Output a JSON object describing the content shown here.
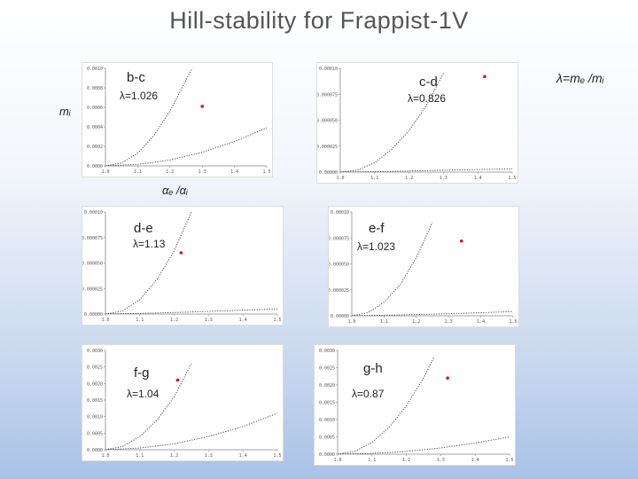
{
  "title": "Hill-stability for Frappist-1V",
  "labels": {
    "lambda_def": "λ=mₑ /mᵢ",
    "ylabel": "mᵢ",
    "xlabel": "αₑ /αᵢ"
  },
  "colors": {
    "point": "#d11a1a",
    "curve": "#333333",
    "axis": "#888888"
  },
  "chart_data": [
    {
      "type": "line",
      "pair": "b-c",
      "lambda_label": "λ=1.026",
      "x_ticks": [
        "1.0",
        "1.1",
        "1.2",
        "1.3",
        "1.4",
        "1.5"
      ],
      "y_ticks": [
        "0.0010",
        "0.0008",
        "0.0006",
        "0.0004",
        "0.0002",
        "0.0000"
      ],
      "xlim": [
        1.0,
        1.5
      ],
      "ylim": [
        0.0,
        0.001
      ],
      "series": [
        {
          "x": [
            1.0,
            1.05,
            1.1,
            1.15,
            1.2,
            1.25,
            1.3
          ],
          "values": [
            0.0,
            3e-05,
            0.00013,
            0.00031,
            0.00056,
            0.00088,
            0.0012
          ]
        },
        {
          "x": [
            1.0,
            1.1,
            1.2,
            1.3,
            1.4,
            1.5
          ],
          "values": [
            0.0,
            1.5e-05,
            6e-05,
            0.00014,
            0.00025,
            0.00039
          ]
        }
      ],
      "point": {
        "x": 1.3,
        "y": 0.00061
      }
    },
    {
      "type": "line",
      "pair": "c-d",
      "lambda_label": "λ=0.826",
      "x_ticks": [
        "1.0",
        "1.1",
        "1.2",
        "1.3",
        "1.4",
        "1.5"
      ],
      "y_ticks": [
        "0.00010",
        "0.000075",
        "0.000050",
        "0.000025",
        "0.00000"
      ],
      "xlim": [
        1.0,
        1.5
      ],
      "ylim": [
        0.0,
        0.0001
      ],
      "series": [
        {
          "x": [
            1.0,
            1.05,
            1.1,
            1.15,
            1.2,
            1.25,
            1.3
          ],
          "values": [
            0.0,
            2e-06,
            9e-06,
            2.2e-05,
            4e-05,
            6.4e-05,
            9.5e-05
          ]
        },
        {
          "x": [
            1.0,
            1.1,
            1.2,
            1.3,
            1.4,
            1.5
          ],
          "values": [
            0.0,
            4e-07,
            1e-06,
            1.8e-06,
            2.5e-06,
            3e-06
          ]
        }
      ],
      "point": {
        "x": 1.42,
        "y": 9.2e-05
      }
    },
    {
      "type": "line",
      "pair": "d-e",
      "lambda_label": "λ=1.13",
      "x_ticks": [
        "1.0",
        "1.1",
        "1.2",
        "1.3",
        "1.4",
        "1.5"
      ],
      "y_ticks": [
        "0.00010",
        "0.000075",
        "0.000050",
        "0.000025",
        "0.00000"
      ],
      "xlim": [
        1.0,
        1.5
      ],
      "ylim": [
        0.0,
        0.0001
      ],
      "series": [
        {
          "x": [
            1.0,
            1.05,
            1.1,
            1.15,
            1.2,
            1.25
          ],
          "values": [
            0.0,
            3e-06,
            1.4e-05,
            3.4e-05,
            6.2e-05,
            0.0001
          ]
        },
        {
          "x": [
            1.0,
            1.1,
            1.2,
            1.3,
            1.4,
            1.5
          ],
          "values": [
            0.0,
            6e-07,
            1.5e-06,
            2.6e-06,
            3.7e-06,
            5e-06
          ]
        }
      ],
      "point": {
        "x": 1.22,
        "y": 6e-05
      }
    },
    {
      "type": "line",
      "pair": "e-f",
      "lambda_label": "λ=1.023",
      "x_ticks": [
        "1.0",
        "1.1",
        "1.2",
        "1.3",
        "1.4",
        "1.5"
      ],
      "y_ticks": [
        "0.00010",
        "0.000075",
        "0.000050",
        "0.000025",
        "0.00000"
      ],
      "xlim": [
        1.0,
        1.5
      ],
      "ylim": [
        0.0,
        0.0001
      ],
      "series": [
        {
          "x": [
            1.0,
            1.05,
            1.1,
            1.15,
            1.2,
            1.25
          ],
          "values": [
            0.0,
            3e-06,
            1.3e-05,
            3e-05,
            5.6e-05,
            9e-05
          ]
        },
        {
          "x": [
            1.0,
            1.1,
            1.2,
            1.3,
            1.4,
            1.5
          ],
          "values": [
            0.0,
            5e-07,
            1.2e-06,
            2e-06,
            3e-06,
            4e-06
          ]
        }
      ],
      "point": {
        "x": 1.34,
        "y": 7.2e-05
      }
    },
    {
      "type": "line",
      "pair": "f-g",
      "lambda_label": "λ=1.04",
      "x_ticks": [
        "1.0",
        "1.1",
        "1.2",
        "1.3",
        "1.4",
        "1.5"
      ],
      "y_ticks": [
        "0.0030",
        "0.0025",
        "0.0020",
        "0.0015",
        "0.0010",
        "0.0005",
        "0.0000"
      ],
      "xlim": [
        1.0,
        1.5
      ],
      "ylim": [
        0.0,
        0.003
      ],
      "series": [
        {
          "x": [
            1.0,
            1.05,
            1.1,
            1.15,
            1.2,
            1.25
          ],
          "values": [
            0.0,
            0.0001,
            0.0004,
            0.0009,
            0.0016,
            0.0026
          ]
        },
        {
          "x": [
            1.0,
            1.1,
            1.2,
            1.3,
            1.4,
            1.5
          ],
          "values": [
            0.0,
            5e-05,
            0.00018,
            0.0004,
            0.0007,
            0.0011
          ]
        }
      ],
      "point": {
        "x": 1.21,
        "y": 0.0021
      }
    },
    {
      "type": "line",
      "pair": "g-h",
      "lambda_label": "λ=0.87",
      "x_ticks": [
        "1.0",
        "1.1",
        "1.2",
        "1.3",
        "1.4",
        "1.5"
      ],
      "y_ticks": [
        "0.0030",
        "0.0025",
        "0.0020",
        "0.0015",
        "0.0010",
        "0.0005",
        "0.0000"
      ],
      "xlim": [
        1.0,
        1.5
      ],
      "ylim": [
        0.0,
        0.003
      ],
      "series": [
        {
          "x": [
            1.0,
            1.05,
            1.1,
            1.15,
            1.2,
            1.25,
            1.28
          ],
          "values": [
            0.0,
            8e-05,
            0.00034,
            0.00078,
            0.0014,
            0.0022,
            0.0028
          ]
        },
        {
          "x": [
            1.0,
            1.1,
            1.2,
            1.3,
            1.4,
            1.5
          ],
          "values": [
            0.0,
            2e-05,
            8e-05,
            0.00018,
            0.00032,
            0.0005
          ]
        }
      ],
      "point": {
        "x": 1.32,
        "y": 0.0022
      }
    }
  ]
}
